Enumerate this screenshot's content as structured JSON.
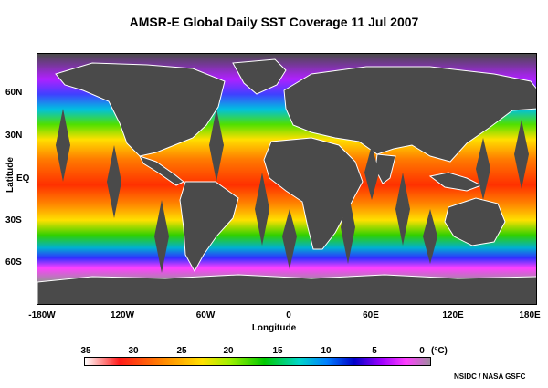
{
  "title": "AMSR-E Global Daily SST Coverage  11 Jul 2007",
  "x_axis": {
    "title": "Longitude",
    "ticks": [
      "-180W",
      "120W",
      "60W",
      "0",
      "60E",
      "120E",
      "180E"
    ]
  },
  "y_axis": {
    "title": "Latitude",
    "ticks": [
      "60N",
      "30N",
      "EQ",
      "30S",
      "60S"
    ]
  },
  "colorbar": {
    "ticks": [
      "35",
      "30",
      "25",
      "20",
      "15",
      "10",
      "5",
      "0"
    ],
    "unit": "(°C)"
  },
  "credit": "NSIDC / NASA GSFC"
}
